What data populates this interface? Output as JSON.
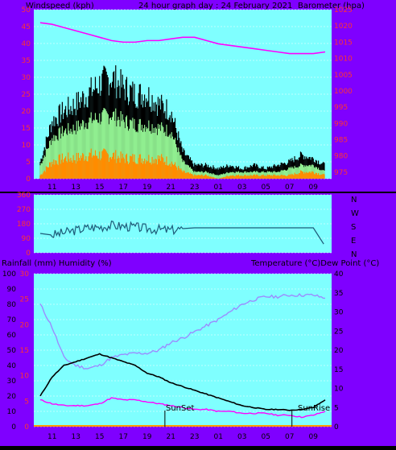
{
  "header": {
    "left": "Windspeed (kph)",
    "center": "24 hour graph day : 24 February 2021",
    "right": "Barometer (hpa)"
  },
  "direction_labels": [
    "N",
    "W",
    "S",
    "E",
    "N"
  ],
  "lower_header": {
    "left": "Rainfall (mm)  Humidity (%)",
    "right": "Temperature (°C)Dew Point (°C)"
  },
  "annotations": {
    "sunset": "SunSet",
    "sunrise": "SunRise"
  },
  "x_ticks": [
    "11",
    "13",
    "15",
    "17",
    "19",
    "21",
    "23",
    "01",
    "03",
    "05",
    "07",
    "09"
  ],
  "colors": {
    "page_bg": "#000000",
    "panel_bg": "#7fffff",
    "frame": "#7f00ff",
    "wind_max": "#000000",
    "wind_gust": "#90ee90",
    "wind_avg": "#ff8c00",
    "barometer": "#ff00ff",
    "direction": "#1e5a78",
    "temperature": "#000000",
    "dew_point": "#ff00ff",
    "humidity": "#9b8cff",
    "rainfall": "#ff9900"
  },
  "chart_data": [
    {
      "type": "line",
      "name": "wind-barometer",
      "x": [
        "10:00",
        "11:00",
        "12:00",
        "13:00",
        "14:00",
        "15:00",
        "16:00",
        "17:00",
        "18:00",
        "19:00",
        "20:00",
        "21:00",
        "22:00",
        "23:00",
        "00:00",
        "01:00",
        "02:00",
        "03:00",
        "04:00",
        "05:00",
        "06:00",
        "07:00",
        "08:00",
        "09:00",
        "09:30"
      ],
      "y_left": {
        "label": "Windspeed (kph)",
        "ticks": [
          0,
          5,
          10,
          15,
          20,
          25,
          30,
          35,
          40,
          45,
          50
        ],
        "ylim": [
          0,
          50
        ]
      },
      "y_right": {
        "label": "Barometer (hpa)",
        "ticks": [
          975,
          980,
          985,
          990,
          995,
          1000,
          1005,
          1010,
          1015,
          1020,
          1025
        ],
        "ylim": [
          973,
          1025
        ]
      },
      "series": [
        {
          "values": [
            5,
            17,
            20,
            22,
            25,
            28,
            30,
            27,
            25,
            25,
            22,
            20,
            8,
            4,
            4,
            3,
            4,
            3,
            4,
            3,
            4,
            5,
            7,
            6,
            4
          ]
        },
        {
          "values": [
            4,
            12,
            14,
            15,
            17,
            18,
            19,
            17,
            16,
            16,
            15,
            14,
            5,
            2,
            2,
            1,
            2,
            2,
            2,
            2,
            2,
            3,
            4,
            4,
            2
          ]
        },
        {
          "values": [
            1,
            5,
            6,
            6,
            7,
            7,
            7,
            6,
            6,
            6,
            6,
            5,
            2,
            1,
            1,
            0,
            1,
            1,
            1,
            1,
            1,
            1,
            2,
            2,
            1
          ]
        },
        {
          "values": [
            1021,
            1020.5,
            1019.5,
            1018.5,
            1017.5,
            1016.5,
            1015.5,
            1015,
            1015,
            1015.5,
            1015.5,
            1016,
            1016.5,
            1016.5,
            1015.5,
            1014.5,
            1014,
            1013.5,
            1013,
            1012.5,
            1012,
            1011.5,
            1011.5,
            1011.5,
            1012
          ]
        }
      ]
    },
    {
      "type": "line",
      "name": "wind-direction",
      "y_labels": [
        "360",
        "270",
        "180",
        "90",
        "0"
      ],
      "right_labels": [
        "N",
        "W",
        "S",
        "E",
        "N"
      ],
      "ylim": [
        0,
        360
      ],
      "series": [
        {
          "values": [
            120,
            110,
            125,
            140,
            155,
            160,
            170,
            165,
            160,
            150,
            145,
            140,
            150,
            155,
            155,
            155,
            155,
            155,
            155,
            155,
            155,
            155,
            155,
            155,
            40
          ]
        }
      ]
    },
    {
      "type": "line",
      "name": "temperature-humidity",
      "y_left": {
        "label": "Humidity (%)",
        "ticks": [
          0,
          10,
          20,
          30,
          40,
          50,
          60,
          70,
          80,
          90,
          100
        ],
        "ylim": [
          0,
          100
        ]
      },
      "y_left_rain": {
        "label": "Rainfall (mm)",
        "ticks": [
          0,
          5,
          10,
          15,
          20,
          25,
          30
        ],
        "ylim": [
          0,
          30
        ]
      },
      "y_right": {
        "label": "Temperature (°C)",
        "ticks": [
          0,
          5,
          10,
          15,
          20,
          25,
          30,
          35,
          40
        ],
        "ylim": [
          0,
          40
        ]
      },
      "series": [
        {
          "values": [
            8,
            13,
            16,
            17,
            18,
            19,
            18,
            17,
            16,
            14,
            13,
            11.5,
            10.5,
            9.5,
            8.5,
            7.5,
            6.5,
            5.5,
            5,
            4.5,
            4.5,
            4.3,
            4.5,
            5,
            7
          ]
        },
        {
          "values": [
            7,
            6,
            5.5,
            5.5,
            5.5,
            6,
            7.5,
            7,
            7,
            6.5,
            6,
            5.5,
            5,
            4.5,
            4.5,
            4,
            4,
            3.5,
            3.5,
            3.5,
            3,
            3,
            2.5,
            3,
            4
          ]
        },
        {
          "values": [
            80,
            65,
            45,
            40,
            38,
            40,
            45,
            47,
            48,
            48,
            50,
            55,
            58,
            62,
            66,
            70,
            75,
            80,
            83,
            85,
            85,
            86,
            86,
            86,
            84
          ]
        },
        {
          "values": [
            0,
            0,
            0,
            0,
            0,
            0,
            0,
            0,
            0,
            0,
            0,
            0,
            0,
            0,
            0,
            0,
            0,
            0,
            0,
            0,
            0,
            0,
            0,
            0,
            0
          ]
        }
      ]
    }
  ]
}
